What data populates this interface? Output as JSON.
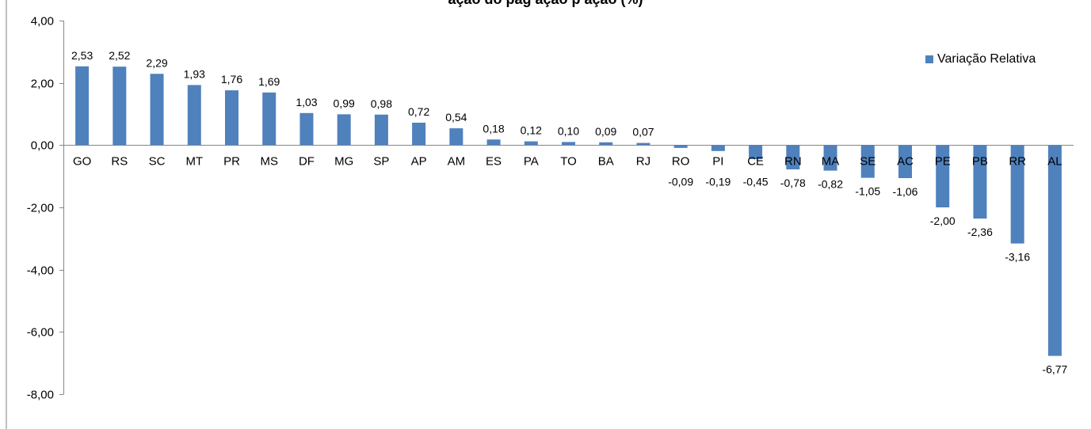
{
  "page": {
    "title_fragment": "ação do pag                                                                         ação p                                                                         ação        (%)"
  },
  "chart_data": {
    "type": "bar",
    "categories": [
      "GO",
      "RS",
      "SC",
      "MT",
      "PR",
      "MS",
      "DF",
      "MG",
      "SP",
      "AP",
      "AM",
      "ES",
      "PA",
      "TO",
      "BA",
      "RJ",
      "RO",
      "PI",
      "CE",
      "RN",
      "MA",
      "SE",
      "AC",
      "PE",
      "PB",
      "RR",
      "AL"
    ],
    "series": [
      {
        "name": "Variação Relativa",
        "values": [
          2.53,
          2.52,
          2.29,
          1.93,
          1.76,
          1.69,
          1.03,
          0.99,
          0.98,
          0.72,
          0.54,
          0.18,
          0.12,
          0.1,
          0.09,
          0.07,
          -0.09,
          -0.19,
          -0.45,
          -0.78,
          -0.82,
          -1.05,
          -1.06,
          -2.0,
          -2.36,
          -3.16,
          -6.77
        ],
        "labels": [
          "2,53",
          "2,52",
          "2,29",
          "1,93",
          "1,76",
          "1,69",
          "1,03",
          "0,99",
          "0,98",
          "0,72",
          "0,54",
          "0,18",
          "0,12",
          "0,10",
          "0,09",
          "0,07",
          "-0,09",
          "-0,19",
          "-0,45",
          "-0,78",
          "-0,82",
          "-1,05",
          "-1,06",
          "-2,00",
          "-2,36",
          "-3,16",
          "-6,77"
        ],
        "color": "#4f81bd"
      }
    ],
    "ylim": [
      -8,
      4
    ],
    "yticks": [
      4,
      2,
      0,
      -2,
      -4,
      -6,
      -8
    ],
    "ytick_labels": [
      "4,00",
      "2,00",
      "0,00",
      "-2,00",
      "-4,00",
      "-6,00",
      "-8,00"
    ],
    "grid": false,
    "legend_position": "top-right",
    "axis_color": "#868686"
  }
}
